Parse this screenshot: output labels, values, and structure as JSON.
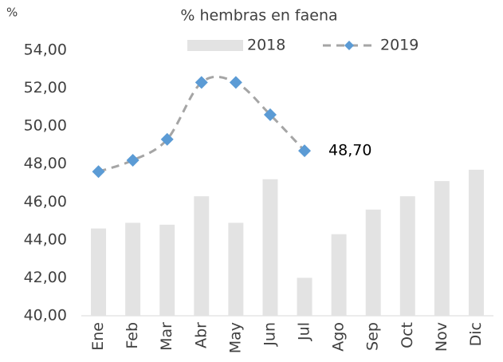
{
  "chart_data": {
    "type": "bar-line",
    "title": "% hembras en faena",
    "y_label": "%",
    "categories": [
      "Ene",
      "Feb",
      "Mar",
      "Abr",
      "May",
      "Jun",
      "Jul",
      "Ago",
      "Sep",
      "Oct",
      "Nov",
      "Dic"
    ],
    "series": [
      {
        "name": "2018",
        "type": "bar",
        "color": "#e3e3e3",
        "values": [
          44.6,
          44.9,
          44.8,
          46.3,
          44.9,
          47.2,
          42.0,
          44.3,
          45.6,
          46.3,
          47.1,
          47.7
        ]
      },
      {
        "name": "2019",
        "type": "line",
        "color": "#a5a5a5",
        "marker_color": "#5b9bd5",
        "values": [
          47.6,
          48.2,
          49.3,
          52.3,
          52.3,
          50.6,
          48.7,
          null,
          null,
          null,
          null,
          null
        ],
        "value_labels": [
          null,
          null,
          null,
          null,
          null,
          null,
          "48,70",
          null,
          null,
          null,
          null,
          null
        ]
      }
    ],
    "ylim": [
      40,
      54
    ],
    "yticks": [
      {
        "value": 40,
        "label": "40,00"
      },
      {
        "value": 42,
        "label": "42,00"
      },
      {
        "value": 44,
        "label": "44,00"
      },
      {
        "value": 46,
        "label": "46,00"
      },
      {
        "value": 48,
        "label": "48,00"
      },
      {
        "value": 50,
        "label": "50,00"
      },
      {
        "value": 52,
        "label": "52,00"
      },
      {
        "value": 54,
        "label": "54,00"
      }
    ],
    "grid": false,
    "legend": "top"
  }
}
